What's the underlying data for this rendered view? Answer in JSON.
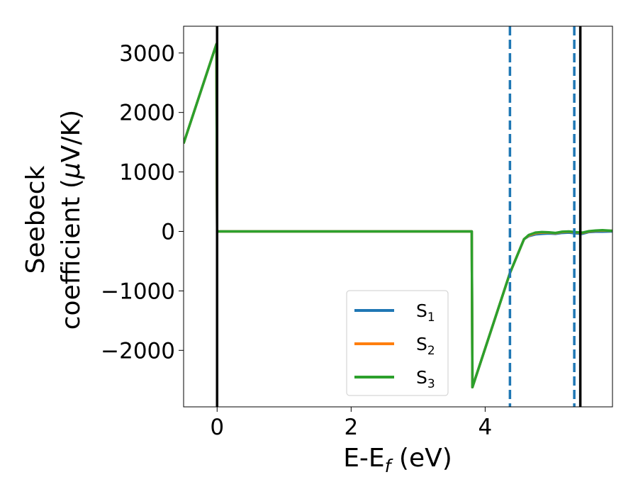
{
  "chart_data": {
    "type": "line",
    "title": "",
    "xlabel": "E-E",
    "xlabel_sub": "f",
    "xlabel_unit": " (eV)",
    "ylabel_line1": "Seebeck",
    "ylabel_line2": "coefficient  (",
    "ylabel_mu": "μ",
    "ylabel_unit": "V/K)",
    "xlim": [
      -0.5,
      5.9
    ],
    "ylim": [
      -2950,
      3450
    ],
    "xticks": [
      0,
      2,
      4
    ],
    "xtick_labels": [
      "0",
      "2",
      "4"
    ],
    "yticks": [
      -2000,
      -1000,
      0,
      1000,
      2000,
      3000
    ],
    "ytick_labels": [
      "−2000",
      "−1000",
      "0",
      "1000",
      "2000",
      "3000"
    ],
    "grid": false,
    "legend_position": "lower-right",
    "vertical_lines": [
      {
        "x": 0.0,
        "style": "solid",
        "color": "#000000"
      },
      {
        "x": 5.42,
        "style": "solid",
        "color": "#000000"
      },
      {
        "x": 4.37,
        "style": "dashed",
        "color": "#1f77b4"
      },
      {
        "x": 5.33,
        "style": "dashed",
        "color": "#1f77b4"
      }
    ],
    "series": [
      {
        "name": "S",
        "sub": "1",
        "color": "#1f77b4",
        "x": [
          -0.5,
          -0.01,
          0.0,
          3.8,
          3.81,
          4.37,
          4.58,
          4.65,
          4.75,
          4.85,
          4.95,
          5.05,
          5.15,
          5.25,
          5.33,
          5.45,
          5.55,
          5.65,
          5.75,
          5.9
        ],
        "y": [
          1480,
          3150,
          0,
          0,
          -2620,
          -700,
          -130,
          -80,
          -50,
          -40,
          -35,
          -40,
          -25,
          -20,
          -30,
          -40,
          -10,
          -5,
          -5,
          0
        ]
      },
      {
        "name": "S",
        "sub": "2",
        "color": "#ff7f0e",
        "x": [
          -0.5,
          -0.01,
          0.0,
          3.8,
          3.81,
          4.37,
          4.58,
          4.65,
          4.75,
          4.85,
          4.95,
          5.05,
          5.15,
          5.25,
          5.33,
          5.45,
          5.55,
          5.65,
          5.75,
          5.9
        ],
        "y": [
          1480,
          3150,
          0,
          0,
          -2620,
          -700,
          -130,
          -70,
          -30,
          -20,
          -20,
          -30,
          -10,
          -5,
          -15,
          -25,
          0,
          10,
          15,
          10
        ]
      },
      {
        "name": "S",
        "sub": "3",
        "color": "#2ca02c",
        "x": [
          -0.5,
          -0.01,
          0.0,
          3.8,
          3.81,
          4.37,
          4.58,
          4.65,
          4.75,
          4.85,
          4.95,
          5.05,
          5.15,
          5.25,
          5.33,
          5.45,
          5.55,
          5.65,
          5.75,
          5.9
        ],
        "y": [
          1480,
          3150,
          0,
          0,
          -2620,
          -700,
          -130,
          -60,
          -20,
          -10,
          -15,
          -25,
          -5,
          0,
          -10,
          -20,
          5,
          15,
          20,
          10
        ]
      }
    ]
  }
}
